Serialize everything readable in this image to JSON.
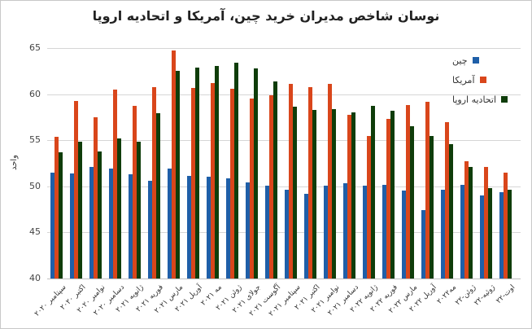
{
  "chart_data": {
    "type": "bar",
    "title": "نوسان شاخص مدیران خرید چین، آمریکا و اتحادیه اروپا",
    "xlabel": "",
    "ylabel": "واحد",
    "ylim": [
      40,
      65
    ],
    "yticks": [
      40,
      45,
      50,
      55,
      60,
      65
    ],
    "grid": true,
    "legend_position": "right",
    "categories": [
      "سپتامبر ۲۰۲۰",
      "اکتبر ۲۰۲۰",
      "نوامبر ۲۰۲۰",
      "دسامبر ۲۰۲۰",
      "ژانویه ۲۰۲۱",
      "فوریه ۲۰۲۱",
      "مارس ۲۰۲۱",
      "آوریل ۲۰۲۱",
      "مه ۲۰۲۱",
      "ژوئن ۲۰۲۱",
      "جولای ۲۰۲۱",
      "آگوست ۲۰۲۱",
      "سپتامبر ۲۰۲۱",
      "اکتبر ۲۰۲۱",
      "نوامبر ۲۰۲۱",
      "دسامبر ۲۰۲۱",
      "ژانویه ۲۰۲۲",
      "فوریه ۲۰۲۲",
      "مارس ۲۰۲۲",
      "آوریل ۲۰۲۲",
      "مه‌۲۰۲۲",
      "ژوئن-۲۲",
      "ژوئیه-۲۲",
      "اوت-۲۲"
    ],
    "series": [
      {
        "name": "چین",
        "color": "#1f5fa8",
        "values": [
          51.5,
          51.4,
          52.1,
          51.9,
          51.3,
          50.6,
          51.9,
          51.1,
          51.0,
          50.9,
          50.4,
          50.1,
          49.6,
          49.2,
          50.1,
          50.3,
          50.1,
          50.2,
          49.5,
          47.4,
          49.6,
          50.2,
          49.0,
          49.4
        ]
      },
      {
        "name": "آمریکا",
        "color": "#d9461b",
        "values": [
          55.4,
          59.3,
          57.5,
          60.5,
          58.7,
          60.8,
          64.7,
          60.7,
          61.2,
          60.6,
          59.5,
          59.9,
          61.1,
          60.8,
          61.1,
          57.8,
          55.5,
          57.3,
          58.8,
          59.2,
          57.0,
          52.7,
          52.1,
          51.5
        ]
      },
      {
        "name": "اتحادیه اروپا",
        "color": "#0f3d0a",
        "values": [
          53.7,
          54.8,
          53.8,
          55.2,
          54.8,
          57.9,
          62.5,
          62.9,
          63.1,
          63.4,
          62.8,
          61.4,
          58.6,
          58.3,
          58.4,
          58.0,
          58.7,
          58.2,
          56.5,
          55.5,
          54.6,
          52.1,
          49.8,
          49.6
        ]
      }
    ]
  }
}
